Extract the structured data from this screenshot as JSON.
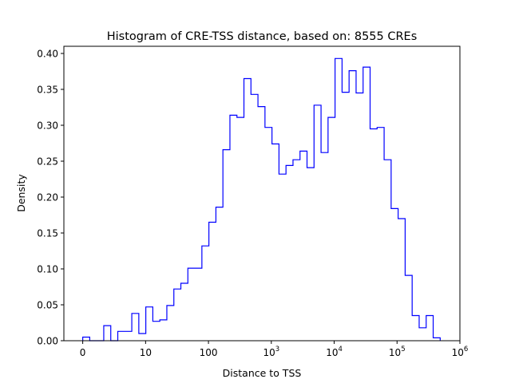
{
  "chart_data": {
    "type": "step-histogram",
    "title": "Histogram of CRE-TSS distance, based on: 8555 CREs",
    "xlabel": "Distance to TSS",
    "ylabel": "Density",
    "xlim": [
      -0.3,
      6.0
    ],
    "ylim": [
      0,
      0.41
    ],
    "x_scale": "symlog-like (log10(distance+1))",
    "x_ticks": [
      {
        "value": 0,
        "label": "0"
      },
      {
        "value": 1,
        "label": "10"
      },
      {
        "value": 2,
        "label": "100"
      },
      {
        "value": 3,
        "label": "10",
        "sup": "3"
      },
      {
        "value": 4,
        "label": "10",
        "sup": "4"
      },
      {
        "value": 5,
        "label": "10",
        "sup": "5"
      },
      {
        "value": 6,
        "label": "10",
        "sup": "6"
      }
    ],
    "y_ticks": [
      {
        "value": 0.0,
        "label": "0.00"
      },
      {
        "value": 0.05,
        "label": "0.05"
      },
      {
        "value": 0.1,
        "label": "0.10"
      },
      {
        "value": 0.15,
        "label": "0.15"
      },
      {
        "value": 0.2,
        "label": "0.20"
      },
      {
        "value": 0.25,
        "label": "0.25"
      },
      {
        "value": 0.3,
        "label": "0.30"
      },
      {
        "value": 0.35,
        "label": "0.35"
      },
      {
        "value": 0.4,
        "label": "0.40"
      }
    ],
    "line_color": "#0000ff",
    "bin_start": 0.0,
    "bin_width": 0.1115,
    "densities": [
      0.005,
      0.0,
      0.0,
      0.021,
      0.0,
      0.013,
      0.013,
      0.038,
      0.01,
      0.047,
      0.027,
      0.029,
      0.049,
      0.072,
      0.08,
      0.101,
      0.101,
      0.132,
      0.165,
      0.186,
      0.266,
      0.314,
      0.311,
      0.365,
      0.343,
      0.326,
      0.297,
      0.274,
      0.232,
      0.244,
      0.252,
      0.264,
      0.241,
      0.328,
      0.262,
      0.311,
      0.393,
      0.346,
      0.376,
      0.345,
      0.381,
      0.295,
      0.297,
      0.252,
      0.184,
      0.17,
      0.091,
      0.035,
      0.018,
      0.035,
      0.004
    ]
  }
}
